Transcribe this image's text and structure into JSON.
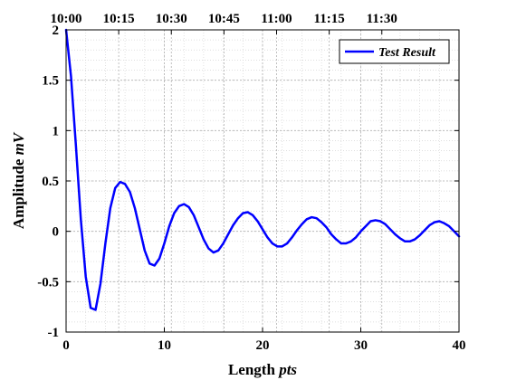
{
  "chart_data": {
    "type": "line",
    "xlabel": "Length",
    "xlabel_unit": "pts",
    "ylabel": "Amplitude",
    "ylabel_unit": "mV",
    "xlim": [
      0,
      40
    ],
    "ylim": [
      -1,
      2
    ],
    "x_ticks": [
      0,
      10,
      20,
      30,
      40
    ],
    "x_tick_labels": [
      "0",
      "10",
      "20",
      "30",
      "40"
    ],
    "y_ticks": [
      -1,
      -0.5,
      0,
      0.5,
      1,
      1.5,
      2
    ],
    "y_tick_labels": [
      "-1",
      "-0.5",
      "0",
      "0.5",
      "1",
      "1.5",
      "2"
    ],
    "top_ticks": [
      0,
      5.357,
      10.714,
      16.071,
      21.429,
      26.786,
      32.143
    ],
    "top_tick_labels": [
      "10:00",
      "10:15",
      "10:30",
      "10:45",
      "11:00",
      "11:15",
      "11:30"
    ],
    "grid": true,
    "minor_grid": true,
    "legend_position": "top-right",
    "series": [
      {
        "name": "Test Result",
        "color": "#0000ff",
        "x": [
          0,
          0.5,
          1,
          1.5,
          2,
          2.5,
          3,
          3.5,
          4,
          4.5,
          5,
          5.5,
          6,
          6.5,
          7,
          7.5,
          8,
          8.5,
          9,
          9.5,
          10,
          10.5,
          11,
          11.5,
          12,
          12.5,
          13,
          13.5,
          14,
          14.5,
          15,
          15.5,
          16,
          16.5,
          17,
          17.5,
          18,
          18.5,
          19,
          19.5,
          20,
          20.5,
          21,
          21.5,
          22,
          22.5,
          23,
          23.5,
          24,
          24.5,
          25,
          25.5,
          26,
          26.5,
          27,
          27.5,
          28,
          28.5,
          29,
          29.5,
          30,
          30.5,
          31,
          31.5,
          32,
          32.5,
          33,
          33.5,
          34,
          34.5,
          35,
          35.5,
          36,
          36.5,
          37,
          37.5,
          38,
          38.5,
          39,
          39.5,
          40
        ],
        "y": [
          2.0,
          1.54,
          0.85,
          0.12,
          -0.45,
          -0.76,
          -0.78,
          -0.52,
          -0.12,
          0.23,
          0.43,
          0.49,
          0.47,
          0.39,
          0.23,
          0.02,
          -0.19,
          -0.32,
          -0.34,
          -0.27,
          -0.12,
          0.05,
          0.18,
          0.25,
          0.27,
          0.24,
          0.16,
          0.04,
          -0.08,
          -0.17,
          -0.21,
          -0.19,
          -0.12,
          -0.03,
          0.06,
          0.13,
          0.18,
          0.19,
          0.16,
          0.1,
          0.02,
          -0.06,
          -0.12,
          -0.15,
          -0.15,
          -0.12,
          -0.06,
          0.01,
          0.07,
          0.12,
          0.14,
          0.13,
          0.09,
          0.04,
          -0.03,
          -0.08,
          -0.12,
          -0.12,
          -0.1,
          -0.06,
          0.0,
          0.05,
          0.1,
          0.11,
          0.1,
          0.07,
          0.02,
          -0.03,
          -0.07,
          -0.1,
          -0.1,
          -0.08,
          -0.04,
          0.01,
          0.06,
          0.09,
          0.1,
          0.08,
          0.05,
          0.0,
          -0.05
        ]
      }
    ]
  }
}
